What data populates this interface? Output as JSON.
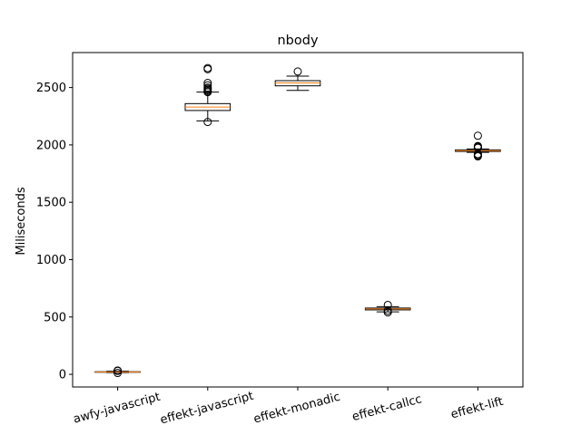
{
  "chart_data": {
    "type": "box",
    "title": "nbody",
    "xlabel": "",
    "ylabel": "Miliseconds",
    "ylim": [
      -110,
      2805
    ],
    "yticks": [
      0,
      500,
      1000,
      1500,
      2000,
      2500
    ],
    "ytick_labels": [
      "0",
      "500",
      "1000",
      "1500",
      "2000",
      "2500"
    ],
    "grid": false,
    "categories": [
      "awfy-javascript",
      "effekt-javascript",
      "effekt-monadic",
      "effekt-callcc",
      "effekt-lift"
    ],
    "boxes": [
      {
        "category": "awfy-javascript",
        "whislo": 15,
        "q1": 18,
        "median": 20,
        "q3": 23,
        "whishi": 27,
        "fliers": [
          12,
          30,
          32,
          33
        ]
      },
      {
        "category": "effekt-javascript",
        "whislo": 2210,
        "q1": 2300,
        "median": 2330,
        "q3": 2360,
        "whishi": 2460,
        "fliers": [
          2200,
          2460,
          2470,
          2480,
          2490,
          2500,
          2520,
          2540,
          2660,
          2670
        ]
      },
      {
        "category": "effekt-monadic",
        "whislo": 2475,
        "q1": 2515,
        "median": 2540,
        "q3": 2560,
        "whishi": 2600,
        "fliers": [
          2640
        ]
      },
      {
        "category": "effekt-callcc",
        "whislo": 545,
        "q1": 562,
        "median": 570,
        "q3": 578,
        "whishi": 590,
        "fliers": [
          540,
          555,
          605
        ]
      },
      {
        "category": "effekt-lift",
        "whislo": 1935,
        "q1": 1943,
        "median": 1950,
        "q3": 1957,
        "whishi": 1965,
        "fliers": [
          1900,
          1905,
          1910,
          1920,
          1975,
          1980,
          1985,
          1990,
          2080
        ]
      }
    ],
    "colors": {
      "box_edge": "#000000",
      "median": "#ff7f0e",
      "flier_edge": "#000000"
    }
  }
}
